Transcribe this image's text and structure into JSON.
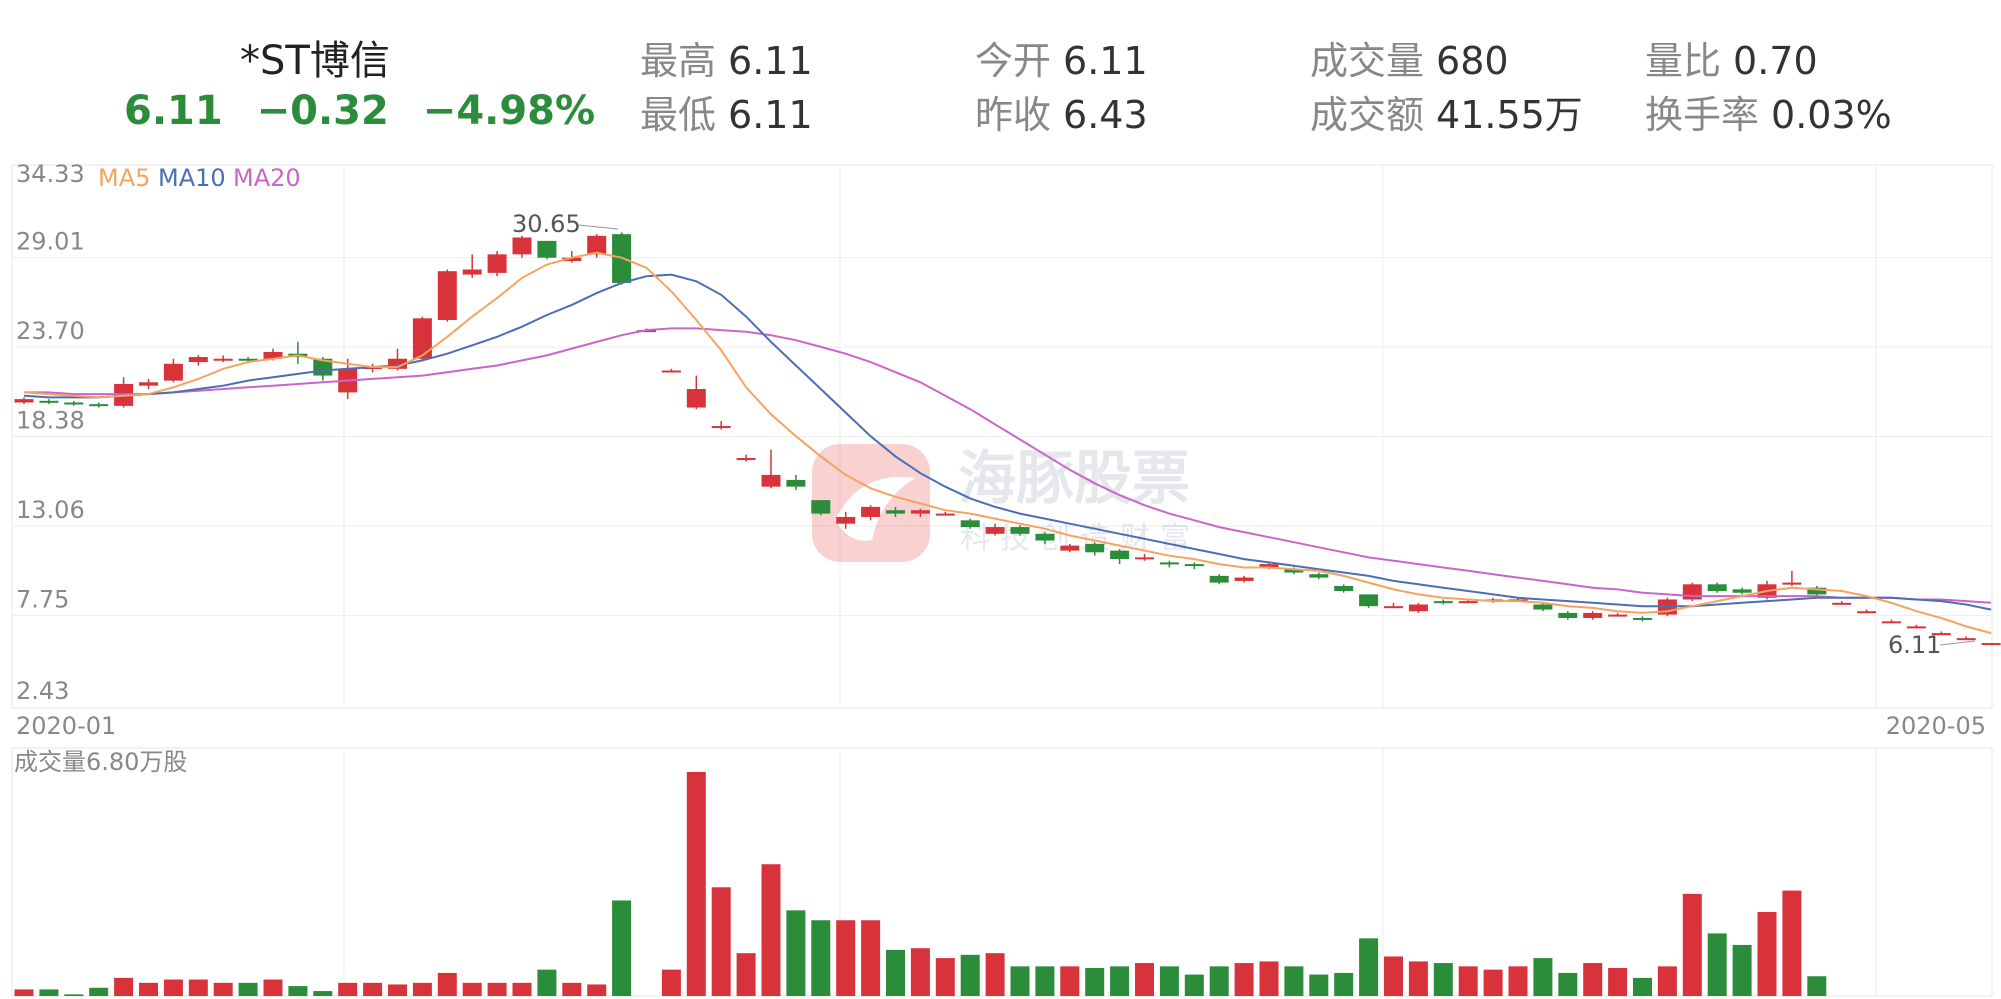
{
  "header": {
    "name": "*ST博信",
    "price": "6.11",
    "change": "−0.32",
    "change_pct": "−4.98%",
    "stats": [
      {
        "label": "最高",
        "value": "6.11"
      },
      {
        "label": "最低",
        "value": "6.11"
      },
      {
        "label": "今开",
        "value": "6.11"
      },
      {
        "label": "昨收",
        "value": "6.43"
      },
      {
        "label": "成交量",
        "value": "680"
      },
      {
        "label": "成交额",
        "value": "41.55万"
      },
      {
        "label": "量比",
        "value": "0.70"
      },
      {
        "label": "换手率",
        "value": "0.03%"
      }
    ]
  },
  "watermark": {
    "title": "海豚股票",
    "subtitle": "科技创造财富"
  },
  "colors": {
    "up": "#d8333a",
    "down": "#2b8c3a",
    "ma5": "#f4a460",
    "ma10": "#4a6fb5",
    "ma20": "#c966c9",
    "grid": "#eeeeee",
    "text": "#888888"
  },
  "chart_data": {
    "type": "candlestick",
    "y_ticks": [
      "34.33",
      "29.01",
      "23.70",
      "18.38",
      "13.06",
      "7.75",
      "2.43"
    ],
    "ylim": [
      2.43,
      34.33
    ],
    "x_labels": {
      "start": "2020-01",
      "end": "2020-05"
    },
    "legend": [
      "MA5",
      "MA10",
      "MA20"
    ],
    "high_annotation": "30.65",
    "last_annotation": "6.11",
    "volume_label": "成交量6.80万股",
    "volume_max": 6.8,
    "candles": [
      [
        20.4,
        20.6,
        20.3,
        20.7
      ],
      [
        20.5,
        20.4,
        20.3,
        20.6
      ],
      [
        20.4,
        20.3,
        20.2,
        20.5
      ],
      [
        20.3,
        20.2,
        20.1,
        20.4
      ],
      [
        20.2,
        21.5,
        20.1,
        21.9
      ],
      [
        21.4,
        21.6,
        21.2,
        21.8
      ],
      [
        21.7,
        22.7,
        21.6,
        23.0
      ],
      [
        22.8,
        23.1,
        22.6,
        23.2
      ],
      [
        22.9,
        23.0,
        22.8,
        23.2
      ],
      [
        23.0,
        22.9,
        22.8,
        23.1
      ],
      [
        23.0,
        23.4,
        22.9,
        23.6
      ],
      [
        23.3,
        23.1,
        22.7,
        24.0
      ],
      [
        23.0,
        22.0,
        21.7,
        23.1
      ],
      [
        21.0,
        22.4,
        20.6,
        23.0
      ],
      [
        22.4,
        22.5,
        22.2,
        22.7
      ],
      [
        22.4,
        23.0,
        22.3,
        23.6
      ],
      [
        23.0,
        25.4,
        22.9,
        25.5
      ],
      [
        25.3,
        28.2,
        25.2,
        28.3
      ],
      [
        28.0,
        28.3,
        27.8,
        29.2
      ],
      [
        28.1,
        29.2,
        27.9,
        29.4
      ],
      [
        29.2,
        30.2,
        29.0,
        30.3
      ],
      [
        30.0,
        29.0,
        28.9,
        30.0
      ],
      [
        28.8,
        29.0,
        28.7,
        29.4
      ],
      [
        29.2,
        30.3,
        29.0,
        30.4
      ],
      [
        30.4,
        27.5,
        27.4,
        30.5
      ],
      [
        24.7,
        24.7,
        24.6,
        24.8
      ],
      [
        22.3,
        22.3,
        22.2,
        22.4
      ],
      [
        20.1,
        21.2,
        20.0,
        22.0
      ],
      [
        19.0,
        19.0,
        18.8,
        19.3
      ],
      [
        17.1,
        17.1,
        16.9,
        17.3
      ],
      [
        15.4,
        16.1,
        15.3,
        17.6
      ],
      [
        15.8,
        15.4,
        15.2,
        16.1
      ],
      [
        14.6,
        13.8,
        13.7,
        14.6
      ],
      [
        13.2,
        13.6,
        12.9,
        13.9
      ],
      [
        13.6,
        14.2,
        13.4,
        14.3
      ],
      [
        14.0,
        13.8,
        13.6,
        14.2
      ],
      [
        13.8,
        14.0,
        13.6,
        14.1
      ],
      [
        13.8,
        13.8,
        13.7,
        13.9
      ],
      [
        13.4,
        13.0,
        12.9,
        13.5
      ],
      [
        12.6,
        13.0,
        12.5,
        13.2
      ],
      [
        13.0,
        12.6,
        12.5,
        13.1
      ],
      [
        12.6,
        12.2,
        12.0,
        12.7
      ],
      [
        11.6,
        11.9,
        11.5,
        12.0
      ],
      [
        12.0,
        11.5,
        11.3,
        12.1
      ],
      [
        11.6,
        11.1,
        10.8,
        11.7
      ],
      [
        11.2,
        11.2,
        11.0,
        11.4
      ],
      [
        10.9,
        10.8,
        10.6,
        11.0
      ],
      [
        10.8,
        10.7,
        10.5,
        10.9
      ],
      [
        10.1,
        9.7,
        9.6,
        10.2
      ],
      [
        9.8,
        10.0,
        9.7,
        10.1
      ],
      [
        10.6,
        10.8,
        10.5,
        10.9
      ],
      [
        10.5,
        10.3,
        10.2,
        10.6
      ],
      [
        10.2,
        10.0,
        9.9,
        10.3
      ],
      [
        9.5,
        9.2,
        9.1,
        9.6
      ],
      [
        9.0,
        8.3,
        8.2,
        9.0
      ],
      [
        8.3,
        8.3,
        8.2,
        8.5
      ],
      [
        8.0,
        8.4,
        7.9,
        8.5
      ],
      [
        8.6,
        8.5,
        8.4,
        8.7
      ],
      [
        8.6,
        8.6,
        8.5,
        8.7
      ],
      [
        8.6,
        8.7,
        8.5,
        8.8
      ],
      [
        8.7,
        8.7,
        8.6,
        8.8
      ],
      [
        8.4,
        8.1,
        8.0,
        8.5
      ],
      [
        7.9,
        7.6,
        7.5,
        8.0
      ],
      [
        7.6,
        7.9,
        7.5,
        8.0
      ],
      [
        7.8,
        7.8,
        7.7,
        7.9
      ],
      [
        7.6,
        7.5,
        7.4,
        7.7
      ],
      [
        7.8,
        8.7,
        7.7,
        8.8
      ],
      [
        8.7,
        9.6,
        8.6,
        9.7
      ],
      [
        9.6,
        9.2,
        9.1,
        9.7
      ],
      [
        9.3,
        9.1,
        9.0,
        9.4
      ],
      [
        8.8,
        9.6,
        8.7,
        9.8
      ],
      [
        9.6,
        9.7,
        9.5,
        10.4
      ],
      [
        9.4,
        9.0,
        8.9,
        9.5
      ],
      [
        8.5,
        8.5,
        8.4,
        8.6
      ],
      [
        8.0,
        8.0,
        7.9,
        8.1
      ],
      [
        7.4,
        7.4,
        7.3,
        7.5
      ],
      [
        7.1,
        7.1,
        7.0,
        7.2
      ],
      [
        6.7,
        6.7,
        6.6,
        6.8
      ],
      [
        6.4,
        6.4,
        6.3,
        6.5
      ],
      [
        6.11,
        6.11,
        6.11,
        6.11
      ]
    ],
    "ma5": [
      21.0,
      20.9,
      20.8,
      20.7,
      20.8,
      20.9,
      21.3,
      21.8,
      22.4,
      22.8,
      23.0,
      23.2,
      22.9,
      22.7,
      22.5,
      22.5,
      23.2,
      24.3,
      25.5,
      26.6,
      27.8,
      28.6,
      29.0,
      29.3,
      29.0,
      28.4,
      27.0,
      25.3,
      23.5,
      21.3,
      19.7,
      18.4,
      17.2,
      16.1,
      15.3,
      14.8,
      14.4,
      14.0,
      13.8,
      13.5,
      13.2,
      12.9,
      12.5,
      12.2,
      11.9,
      11.6,
      11.3,
      11.1,
      10.8,
      10.6,
      10.6,
      10.5,
      10.4,
      10.1,
      9.7,
      9.3,
      9.0,
      8.8,
      8.7,
      8.6,
      8.6,
      8.5,
      8.3,
      8.2,
      8.0,
      7.9,
      8.0,
      8.3,
      8.6,
      8.9,
      9.2,
      9.4,
      9.3,
      9.2,
      8.9,
      8.5,
      8.0,
      7.6,
      7.1,
      6.7
    ],
    "ma10": [
      20.8,
      20.7,
      20.7,
      20.7,
      20.8,
      20.9,
      21.0,
      21.2,
      21.4,
      21.7,
      21.9,
      22.1,
      22.3,
      22.4,
      22.5,
      22.6,
      22.9,
      23.3,
      23.8,
      24.3,
      24.9,
      25.6,
      26.2,
      26.9,
      27.5,
      27.9,
      28.0,
      27.6,
      26.8,
      25.5,
      24.0,
      22.6,
      21.2,
      19.8,
      18.4,
      17.2,
      16.2,
      15.4,
      14.7,
      14.2,
      13.8,
      13.5,
      13.2,
      12.9,
      12.6,
      12.3,
      12.0,
      11.7,
      11.4,
      11.1,
      10.9,
      10.7,
      10.5,
      10.3,
      10.1,
      9.8,
      9.6,
      9.4,
      9.2,
      9.0,
      8.8,
      8.7,
      8.6,
      8.5,
      8.4,
      8.3,
      8.3,
      8.3,
      8.4,
      8.5,
      8.6,
      8.7,
      8.8,
      8.8,
      8.8,
      8.8,
      8.7,
      8.6,
      8.4,
      8.1
    ],
    "ma20": [
      21.0,
      21.0,
      20.9,
      20.9,
      20.9,
      20.9,
      21.0,
      21.1,
      21.2,
      21.3,
      21.4,
      21.5,
      21.6,
      21.7,
      21.8,
      21.9,
      22.0,
      22.2,
      22.4,
      22.6,
      22.9,
      23.2,
      23.6,
      24.0,
      24.4,
      24.7,
      24.8,
      24.8,
      24.7,
      24.6,
      24.4,
      24.1,
      23.7,
      23.3,
      22.8,
      22.2,
      21.6,
      20.8,
      20.0,
      19.1,
      18.2,
      17.3,
      16.4,
      15.6,
      14.9,
      14.3,
      13.8,
      13.4,
      13.0,
      12.7,
      12.4,
      12.1,
      11.8,
      11.5,
      11.2,
      11.0,
      10.8,
      10.6,
      10.4,
      10.2,
      10.0,
      9.8,
      9.6,
      9.4,
      9.3,
      9.1,
      9.0,
      8.9,
      8.9,
      8.9,
      8.9,
      8.9,
      8.9,
      8.8,
      8.8,
      8.8,
      8.7,
      8.7,
      8.6,
      8.5
    ],
    "volume": [
      0.2,
      0.2,
      0.05,
      0.25,
      0.55,
      0.4,
      0.5,
      0.5,
      0.4,
      0.4,
      0.5,
      0.3,
      0.15,
      0.4,
      0.4,
      0.35,
      0.4,
      0.7,
      0.4,
      0.4,
      0.4,
      0.8,
      0.4,
      0.35,
      2.9,
      0,
      0.8,
      6.8,
      3.3,
      1.3,
      4.0,
      2.6,
      2.3,
      2.3,
      2.3,
      1.4,
      1.45,
      1.15,
      1.25,
      1.3,
      0.9,
      0.9,
      0.9,
      0.85,
      0.9,
      1.0,
      0.9,
      0.65,
      0.9,
      1.0,
      1.05,
      0.9,
      0.65,
      0.7,
      1.75,
      1.2,
      1.05,
      1.0,
      0.9,
      0.8,
      0.9,
      1.15,
      0.7,
      1.0,
      0.85,
      0.55,
      0.9,
      3.1,
      1.9,
      1.55,
      2.55,
      3.2,
      0.6,
      0,
      0,
      0,
      0,
      0,
      0,
      0
    ]
  }
}
